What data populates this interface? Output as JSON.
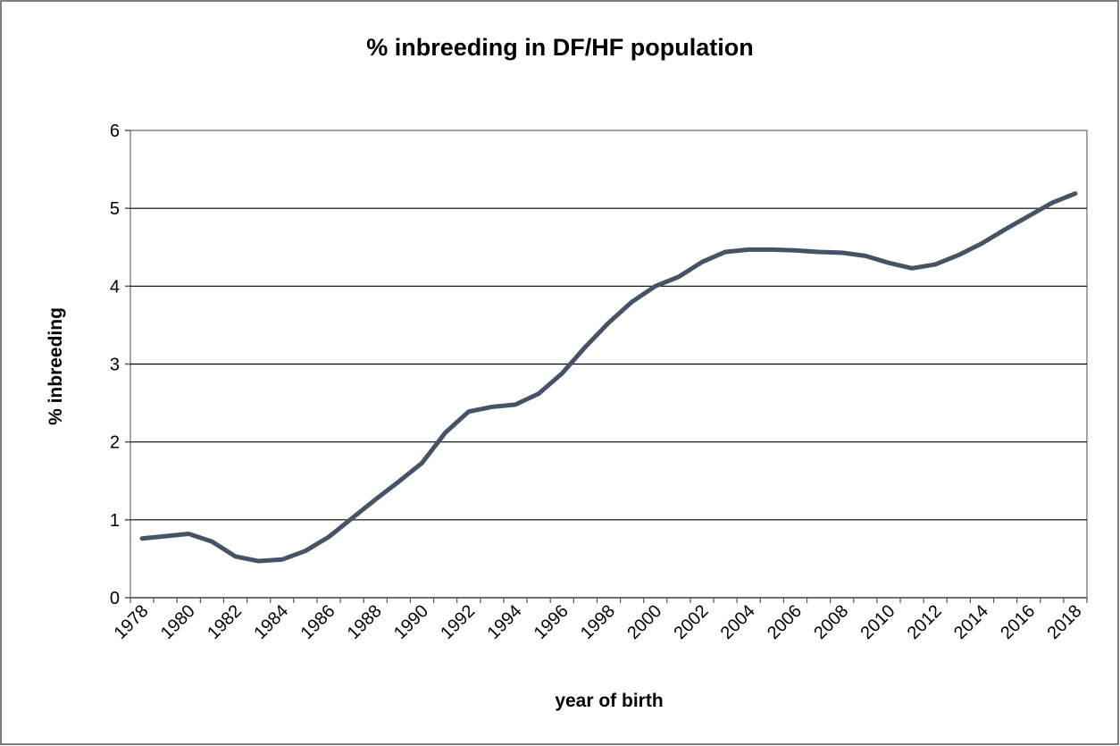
{
  "chart_data": {
    "type": "line",
    "title": "% inbreeding in DF/HF population",
    "xlabel": "year of birth",
    "ylabel": "% inbreeding",
    "categories": [
      "1978",
      null,
      "1980",
      null,
      "1982",
      null,
      "1984",
      null,
      "1986",
      null,
      "1988",
      null,
      "1990",
      null,
      "1992",
      null,
      "1994",
      null,
      "1996",
      null,
      "1998",
      null,
      "2000",
      null,
      "2002",
      null,
      "2004",
      null,
      "2006",
      null,
      "2008",
      null,
      "2010",
      null,
      "2012",
      null,
      "2014",
      null,
      "2016",
      null,
      "2018"
    ],
    "series": [
      {
        "name": "% inbreeding",
        "color": "#465366",
        "values": [
          0.76,
          0.79,
          0.82,
          0.72,
          0.53,
          0.47,
          0.49,
          0.6,
          0.78,
          1.02,
          1.26,
          1.49,
          1.73,
          2.12,
          2.39,
          2.45,
          2.48,
          2.62,
          2.88,
          3.22,
          3.53,
          3.8,
          4.0,
          4.12,
          4.31,
          4.44,
          4.47,
          4.47,
          4.46,
          4.44,
          4.43,
          4.39,
          4.3,
          4.23,
          4.28,
          4.4,
          4.55,
          4.73,
          4.9,
          5.07,
          5.19
        ]
      }
    ],
    "ylim": [
      0,
      6
    ],
    "yticks": [
      0,
      1,
      2,
      3,
      4,
      5,
      6
    ],
    "grid": true
  }
}
